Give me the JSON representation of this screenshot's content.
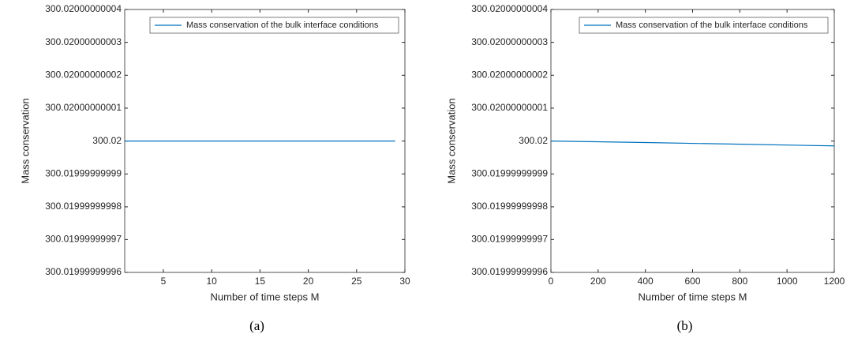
{
  "chart_data": [
    {
      "type": "line",
      "caption": "(a)",
      "x_label": "Number of time steps M",
      "y_label": "Mass conservation",
      "x": [
        1,
        5,
        10,
        15,
        20,
        25,
        29
      ],
      "series": [
        {
          "name": "Mass conservation of the bulk interface conditions",
          "color": "#0072bd",
          "values": [
            300.02,
            300.02,
            300.02,
            300.02,
            300.02,
            300.02,
            300.02
          ]
        }
      ],
      "xlim": [
        1,
        30
      ],
      "xticks": [
        5,
        10,
        15,
        20,
        25,
        30
      ],
      "ylim": [
        300.01999999996,
        300.02000000004
      ],
      "yticks": [
        {
          "value": 300.01999999996,
          "label": "300.01999999996"
        },
        {
          "value": 300.01999999997,
          "label": "300.01999999997"
        },
        {
          "value": 300.01999999998,
          "label": "300.01999999998"
        },
        {
          "value": 300.01999999999,
          "label": "300.01999999999"
        },
        300.02,
        {
          "value": 300.02000000001,
          "label": "300.02000000001"
        },
        {
          "value": 300.02000000002,
          "label": "300.02000000002"
        },
        {
          "value": 300.02000000003,
          "label": "300.02000000003"
        },
        {
          "value": 300.02000000004,
          "label": "300.02000000004"
        }
      ],
      "legend": "upper right"
    },
    {
      "type": "line",
      "caption": "(b)",
      "x_label": "Number of time steps M",
      "y_label": "Mass conservation",
      "x": [
        0,
        400,
        800,
        1200
      ],
      "series": [
        {
          "name": "Mass conservation of the bulk interface conditions",
          "color": "#0072bd",
          "values": [
            300.02,
            300.0199999999995,
            300.019999999999,
            300.0199999999985
          ]
        }
      ],
      "xlim": [
        0,
        1200
      ],
      "xticks": [
        0,
        200,
        400,
        600,
        800,
        1000,
        1200
      ],
      "ylim": [
        300.01999999996,
        300.02000000004
      ],
      "yticks": [
        {
          "value": 300.01999999996,
          "label": "300.01999999996"
        },
        {
          "value": 300.01999999997,
          "label": "300.01999999997"
        },
        {
          "value": 300.01999999998,
          "label": "300.01999999998"
        },
        {
          "value": 300.01999999999,
          "label": "300.01999999999"
        },
        300.02,
        {
          "value": 300.02000000001,
          "label": "300.02000000001"
        },
        {
          "value": 300.02000000002,
          "label": "300.02000000002"
        },
        {
          "value": 300.02000000003,
          "label": "300.02000000003"
        },
        {
          "value": 300.02000000004,
          "label": "300.02000000004"
        }
      ],
      "legend": "upper right"
    }
  ]
}
